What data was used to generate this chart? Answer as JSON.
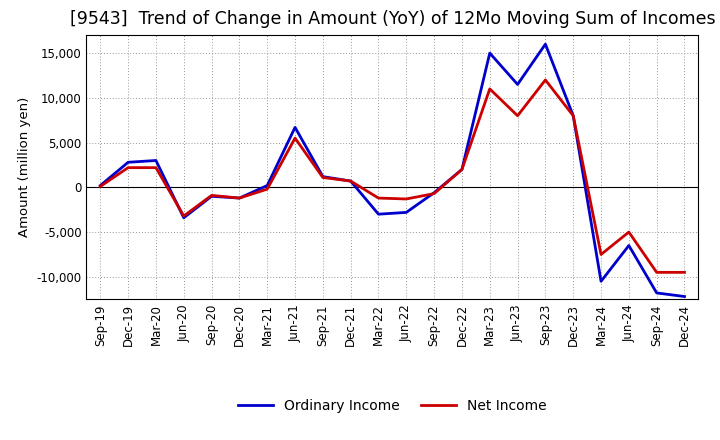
{
  "title": "[9543]  Trend of Change in Amount (YoY) of 12Mo Moving Sum of Incomes",
  "ylabel": "Amount (million yen)",
  "x_labels": [
    "Sep-19",
    "Dec-19",
    "Mar-20",
    "Jun-20",
    "Sep-20",
    "Dec-20",
    "Mar-21",
    "Jun-21",
    "Sep-21",
    "Dec-21",
    "Mar-22",
    "Jun-22",
    "Sep-22",
    "Dec-22",
    "Mar-23",
    "Jun-23",
    "Sep-23",
    "Dec-23",
    "Mar-24",
    "Jun-24",
    "Sep-24",
    "Dec-24"
  ],
  "ordinary_income": [
    200,
    2800,
    3000,
    -3400,
    -1000,
    -1200,
    200,
    6700,
    1200,
    700,
    -3000,
    -2800,
    -600,
    2000,
    15000,
    11500,
    16000,
    8000,
    -10500,
    -6500,
    -11800,
    -12200
  ],
  "net_income": [
    100,
    2200,
    2200,
    -3200,
    -900,
    -1200,
    -200,
    5500,
    1100,
    700,
    -1200,
    -1300,
    -700,
    2000,
    11000,
    8000,
    12000,
    8000,
    -7500,
    -5000,
    -9500,
    -9500
  ],
  "ordinary_color": "#0000cc",
  "net_color": "#cc0000",
  "line_width": 2.0,
  "ylim": [
    -12500,
    17000
  ],
  "yticks": [
    -10000,
    -5000,
    0,
    5000,
    10000,
    15000
  ],
  "background_color": "#ffffff",
  "grid_color": "#999999",
  "title_fontsize": 12.5,
  "axis_fontsize": 9.5,
  "tick_fontsize": 8.5,
  "legend_fontsize": 10
}
